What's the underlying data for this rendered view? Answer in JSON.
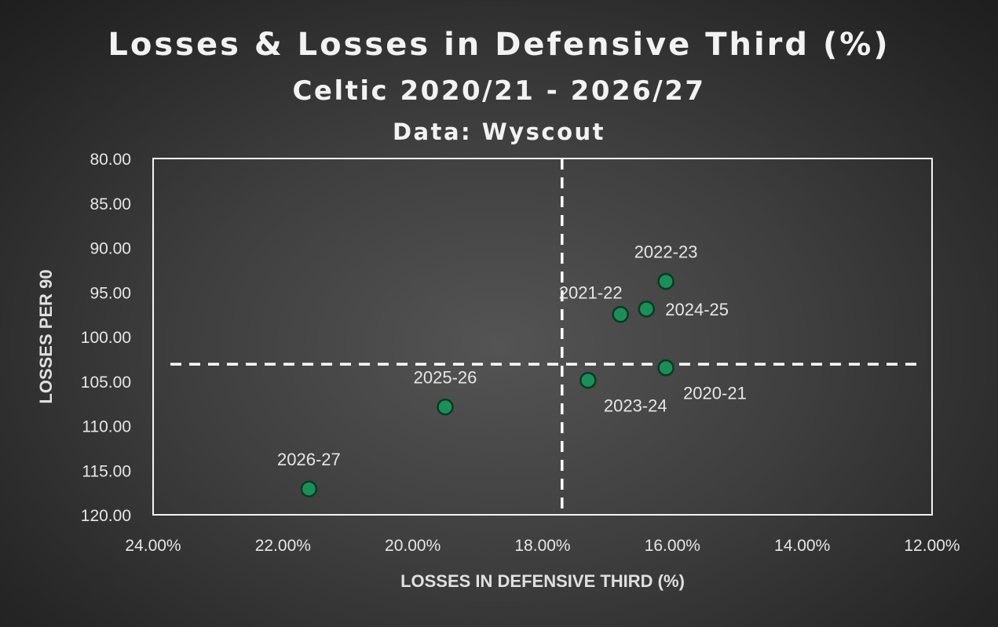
{
  "titles": {
    "main": "Losses & Losses in Defensive Third (%)",
    "sub": "Celtic 2020/21 - 2026/27",
    "source": "Data: Wyscout"
  },
  "chart_data": {
    "type": "scatter",
    "title": "Losses & Losses in Defensive Third (%)",
    "subtitle": "Celtic 2020/21 - 2026/27",
    "source": "Data: Wyscout",
    "xlabel": "LOSSES IN DEFENSIVE THIRD (%)",
    "ylabel": "LOSSES PER 90",
    "x_reversed": true,
    "y_reversed": true,
    "xlim": [
      24,
      12
    ],
    "ylim": [
      80,
      120
    ],
    "x_ticks": [
      24,
      22,
      20,
      18,
      16,
      14,
      12
    ],
    "x_tick_labels": [
      "24.00%",
      "22.00%",
      "20.00%",
      "18.00%",
      "16.00%",
      "14.00%",
      "12.00%"
    ],
    "y_ticks": [
      80,
      85,
      90,
      95,
      100,
      105,
      110,
      115,
      120
    ],
    "y_tick_labels": [
      "80.00",
      "85.00",
      "90.00",
      "95.00",
      "100.00",
      "105.00",
      "110.00",
      "115.00",
      "120.00"
    ],
    "reference_lines": {
      "x": 17.7,
      "y": 103.1
    },
    "grid": false,
    "point_color": "#1a8f5a",
    "point_edge_color": "#0a3a22",
    "points": [
      {
        "label": "2020-21",
        "x": 16.1,
        "y": 103.5,
        "label_pos": "below-right"
      },
      {
        "label": "2021-22",
        "x": 16.8,
        "y": 97.5,
        "label_pos": "above-left"
      },
      {
        "label": "2022-23",
        "x": 16.1,
        "y": 93.8,
        "label_pos": "above"
      },
      {
        "label": "2023-24",
        "x": 17.3,
        "y": 104.9,
        "label_pos": "below-right"
      },
      {
        "label": "2024-25",
        "x": 16.4,
        "y": 96.9,
        "label_pos": "right"
      },
      {
        "label": "2025-26",
        "x": 19.5,
        "y": 107.9,
        "label_pos": "above"
      },
      {
        "label": "2026-27",
        "x": 21.6,
        "y": 117.1,
        "label_pos": "above"
      }
    ]
  }
}
